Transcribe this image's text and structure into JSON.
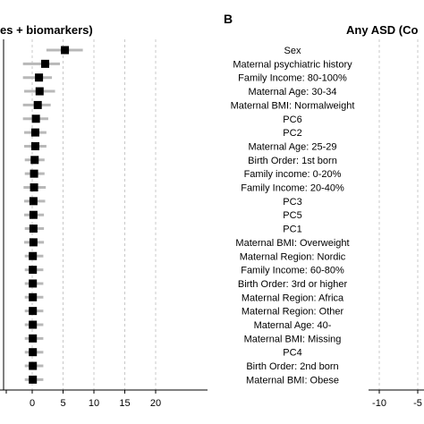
{
  "chart_data": [
    {
      "type": "scatter",
      "subtype": "forest-plot",
      "title": "es + biomarkers)",
      "xlim": [
        -4,
        20
      ],
      "xticks": [
        "0",
        "5",
        "10",
        "15",
        "20"
      ],
      "grid": "vertical dashed",
      "estimates": [
        5.3,
        2.1,
        1.1,
        1.2,
        0.9,
        0.6,
        0.5,
        0.5,
        0.4,
        0.3,
        0.3,
        0.2,
        0.2,
        0.2,
        0.2,
        0.1,
        0.1,
        0.1,
        0.1,
        0.1,
        0.1,
        0.1,
        0.1,
        0.1,
        0.1
      ],
      "ci_low": [
        2.3,
        -1.5,
        -1.5,
        -1.3,
        -1.5,
        -1.5,
        -1.3,
        -1.3,
        -1.2,
        -1.2,
        -1.4,
        -1.3,
        -1.3,
        -1.2,
        -1.3,
        -1.2,
        -1.2,
        -1.2,
        -1.2,
        -1.2,
        -1.2,
        -1.2,
        -1.2,
        -1.2,
        -1.2
      ],
      "ci_high": [
        8.2,
        4.5,
        3.2,
        3.7,
        3.0,
        2.6,
        2.3,
        2.3,
        2.0,
        2.0,
        2.2,
        2.1,
        1.9,
        1.9,
        1.9,
        1.8,
        1.8,
        1.8,
        1.8,
        1.8,
        1.8,
        1.8,
        1.8,
        1.8,
        1.8
      ]
    },
    {
      "type": "scatter",
      "subtype": "forest-plot",
      "panel_label": "B",
      "title": "Any ASD (Co",
      "xticks": [
        "-10",
        "-5"
      ],
      "grid": "vertical dashed",
      "variables": [
        "Sex",
        "Maternal psychiatric history",
        "Family Income: 80-100%",
        "Maternal Age: 30-34",
        "Maternal BMI: Normalweight",
        "PC6",
        "PC2",
        "Maternal Age: 25-29",
        "Birth Order: 1st born",
        "Family income: 0-20%",
        "Family Income: 20-40%",
        "PC3",
        "PC5",
        "PC1",
        "Maternal BMI: Overweight",
        "Maternal Region: Nordic",
        "Family Income: 60-80%",
        "Birth Order: 3rd or higher",
        "Maternal Region: Africa",
        "Maternal Region: Other",
        "Maternal Age: 40-",
        "Maternal BMI: Missing",
        "PC4",
        "Birth Order: 2nd born",
        "Maternal BMI: Obese"
      ]
    }
  ]
}
